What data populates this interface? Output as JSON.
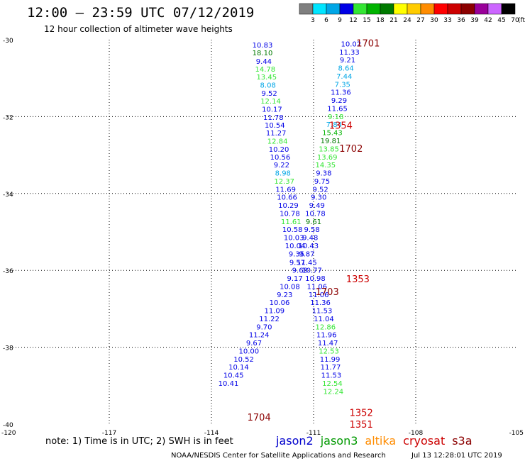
{
  "header": {
    "title": "12:00 – 23:59 UTC 07/12/2019",
    "subtitle": "12 hour collection of altimeter wave heights"
  },
  "legend": {
    "unit": "(ft)",
    "bins": [
      {
        "label": "3",
        "color": "#7f7f7f"
      },
      {
        "label": "6",
        "color": "#00e5ff"
      },
      {
        "label": "9",
        "color": "#00a6e6"
      },
      {
        "label": "12",
        "color": "#0000e6"
      },
      {
        "label": "15",
        "color": "#33e633"
      },
      {
        "label": "18",
        "color": "#00b300"
      },
      {
        "label": "21",
        "color": "#007a00"
      },
      {
        "label": "24",
        "color": "#ffff00"
      },
      {
        "label": "27",
        "color": "#ffcc00"
      },
      {
        "label": "30",
        "color": "#ff8c00"
      },
      {
        "label": "33",
        "color": "#ff0000"
      },
      {
        "label": "36",
        "color": "#cc0000"
      },
      {
        "label": "39",
        "color": "#8b0000"
      },
      {
        "label": "42",
        "color": "#990099"
      },
      {
        "label": "45",
        "color": "#cc66ff"
      },
      {
        "label": "70",
        "color": "#000000"
      }
    ]
  },
  "footer": {
    "note": "note:  1) Time is in UTC; 2) SWH is in feet",
    "satellites": [
      {
        "name": "jason2",
        "color": "#0000cc"
      },
      {
        "name": "jason3",
        "color": "#009900"
      },
      {
        "name": "altika",
        "color": "#ff8c00"
      },
      {
        "name": "cryosat",
        "color": "#cc0000"
      },
      {
        "name": "s3a",
        "color": "#8b0000"
      }
    ],
    "credit": "NOAA/NESDIS Center for Satellite Applications and Research",
    "timestamp": "Jul 13 12:28:01 UTC 2019"
  },
  "chart_data": {
    "type": "scatter",
    "xlim": [
      -120,
      -105
    ],
    "ylim": [
      -40,
      -30
    ],
    "x_ticks": [
      -120,
      -117,
      -114,
      -111,
      -108,
      -105
    ],
    "y_ticks": [
      -30,
      -32,
      -34,
      -36,
      -38,
      -40
    ],
    "x_tick_labels": [
      "-120",
      "-117",
      "-114",
      "-111",
      "-108",
      "-105"
    ],
    "y_tick_labels": [
      "-30",
      "-32",
      "-34",
      "-36",
      "-38",
      "-40"
    ],
    "grid": true,
    "track_labels": [
      {
        "text": "1701",
        "x": -109.4,
        "y": -30.08,
        "color": "#8b0000"
      },
      {
        "text": "1354",
        "x": -110.2,
        "y": -32.22,
        "color": "#cc0000"
      },
      {
        "text": "1702",
        "x": -109.9,
        "y": -32.82,
        "color": "#8b0000"
      },
      {
        "text": "1353",
        "x": -109.7,
        "y": -36.22,
        "color": "#cc0000"
      },
      {
        "text": "1703",
        "x": -110.6,
        "y": -36.55,
        "color": "#8b0000"
      },
      {
        "text": "1704",
        "x": -112.6,
        "y": -39.82,
        "color": "#8b0000"
      },
      {
        "text": "1352",
        "x": -109.6,
        "y": -39.7,
        "color": "#cc0000"
      },
      {
        "text": "1351",
        "x": -109.6,
        "y": -40.0,
        "color": "#cc0000"
      }
    ],
    "points": [
      {
        "text": "10.83",
        "x": -112.5,
        "y": -30.13,
        "color": "#0000e6"
      },
      {
        "text": "18.10",
        "x": -112.5,
        "y": -30.33,
        "color": "#007a00"
      },
      {
        "text": "9.44",
        "x": -112.46,
        "y": -30.55,
        "color": "#0000e6"
      },
      {
        "text": "14.78",
        "x": -112.42,
        "y": -30.76,
        "color": "#33e633"
      },
      {
        "text": "13.45",
        "x": -112.38,
        "y": -30.96,
        "color": "#33e633"
      },
      {
        "text": "8.08",
        "x": -112.34,
        "y": -31.17,
        "color": "#00a6e6"
      },
      {
        "text": "9.52",
        "x": -112.3,
        "y": -31.38,
        "color": "#0000e6"
      },
      {
        "text": "12.14",
        "x": -112.26,
        "y": -31.59,
        "color": "#33e633"
      },
      {
        "text": "10.17",
        "x": -112.22,
        "y": -31.8,
        "color": "#0000e6"
      },
      {
        "text": "11.78",
        "x": -112.18,
        "y": -32.01,
        "color": "#0000e6"
      },
      {
        "text": "10.54",
        "x": -112.14,
        "y": -32.21,
        "color": "#0000e6"
      },
      {
        "text": "11.27",
        "x": -112.1,
        "y": -32.42,
        "color": "#0000e6"
      },
      {
        "text": "12.84",
        "x": -112.06,
        "y": -32.63,
        "color": "#33e633"
      },
      {
        "text": "10.20",
        "x": -112.02,
        "y": -32.84,
        "color": "#0000e6"
      },
      {
        "text": "10.56",
        "x": -111.98,
        "y": -33.04,
        "color": "#0000e6"
      },
      {
        "text": "9.22",
        "x": -111.94,
        "y": -33.25,
        "color": "#0000e6"
      },
      {
        "text": "8.98",
        "x": -111.9,
        "y": -33.46,
        "color": "#00a6e6"
      },
      {
        "text": "12.37",
        "x": -111.86,
        "y": -33.67,
        "color": "#33e633"
      },
      {
        "text": "11.69",
        "x": -111.82,
        "y": -33.88,
        "color": "#0000e6"
      },
      {
        "text": "10.66",
        "x": -111.78,
        "y": -34.09,
        "color": "#0000e6"
      },
      {
        "text": "10.29",
        "x": -111.74,
        "y": -34.3,
        "color": "#0000e6"
      },
      {
        "text": "10.78",
        "x": -111.7,
        "y": -34.51,
        "color": "#0000e6"
      },
      {
        "text": "11.61",
        "x": -111.66,
        "y": -34.72,
        "color": "#33e633"
      },
      {
        "text": "10.58",
        "x": -111.62,
        "y": -34.93,
        "color": "#0000e6"
      },
      {
        "text": "10.03",
        "x": -111.58,
        "y": -35.14,
        "color": "#0000e6"
      },
      {
        "text": "10.04",
        "x": -111.54,
        "y": -35.35,
        "color": "#0000e6"
      },
      {
        "text": "9.35",
        "x": -111.5,
        "y": -35.56,
        "color": "#0000e6"
      },
      {
        "text": "9.57",
        "x": -111.48,
        "y": -35.78,
        "color": "#0000e6"
      },
      {
        "text": "9.68",
        "x": -111.4,
        "y": -35.99,
        "color": "#0000e6"
      },
      {
        "text": "9.17",
        "x": -111.55,
        "y": -36.2,
        "color": "#0000e6"
      },
      {
        "text": "10.08",
        "x": -111.7,
        "y": -36.41,
        "color": "#0000e6"
      },
      {
        "text": "9.23",
        "x": -111.85,
        "y": -36.62,
        "color": "#0000e6"
      },
      {
        "text": "10.06",
        "x": -112.0,
        "y": -36.83,
        "color": "#0000e6"
      },
      {
        "text": "11.09",
        "x": -112.15,
        "y": -37.04,
        "color": "#0000e6"
      },
      {
        "text": "11.22",
        "x": -112.3,
        "y": -37.25,
        "color": "#0000e6"
      },
      {
        "text": "9.70",
        "x": -112.45,
        "y": -37.46,
        "color": "#0000e6"
      },
      {
        "text": "11.24",
        "x": -112.6,
        "y": -37.67,
        "color": "#0000e6"
      },
      {
        "text": "9.67",
        "x": -112.75,
        "y": -37.88,
        "color": "#0000e6"
      },
      {
        "text": "10.00",
        "x": -112.9,
        "y": -38.09,
        "color": "#0000e6"
      },
      {
        "text": "10.52",
        "x": -113.05,
        "y": -38.3,
        "color": "#0000e6"
      },
      {
        "text": "10.14",
        "x": -113.2,
        "y": -38.51,
        "color": "#0000e6"
      },
      {
        "text": "10.45",
        "x": -113.35,
        "y": -38.72,
        "color": "#0000e6"
      },
      {
        "text": "10.41",
        "x": -113.5,
        "y": -38.93,
        "color": "#0000e6"
      },
      {
        "text": "10.02",
        "x": -109.9,
        "y": -30.1,
        "color": "#0000e6"
      },
      {
        "text": "11.33",
        "x": -109.95,
        "y": -30.31,
        "color": "#0000e6"
      },
      {
        "text": "9.21",
        "x": -110.0,
        "y": -30.52,
        "color": "#0000e6"
      },
      {
        "text": "8.64",
        "x": -110.05,
        "y": -30.73,
        "color": "#00a6e6"
      },
      {
        "text": "7.44",
        "x": -110.1,
        "y": -30.94,
        "color": "#00a6e6"
      },
      {
        "text": "7.35",
        "x": -110.15,
        "y": -31.15,
        "color": "#00a6e6"
      },
      {
        "text": "11.36",
        "x": -110.2,
        "y": -31.36,
        "color": "#0000e6"
      },
      {
        "text": "9.29",
        "x": -110.25,
        "y": -31.57,
        "color": "#0000e6"
      },
      {
        "text": "11.65",
        "x": -110.3,
        "y": -31.78,
        "color": "#0000e6"
      },
      {
        "text": "9.18",
        "x": -110.35,
        "y": -31.99,
        "color": "#33e633"
      },
      {
        "text": "7.84",
        "x": -110.4,
        "y": -32.2,
        "color": "#00a6e6"
      },
      {
        "text": "15.43",
        "x": -110.45,
        "y": -32.41,
        "color": "#00b300"
      },
      {
        "text": "19.81",
        "x": -110.5,
        "y": -32.62,
        "color": "#007a00"
      },
      {
        "text": "13.85",
        "x": -110.55,
        "y": -32.83,
        "color": "#33e633"
      },
      {
        "text": "13.69",
        "x": -110.6,
        "y": -33.04,
        "color": "#33e633"
      },
      {
        "text": "14.35",
        "x": -110.65,
        "y": -33.25,
        "color": "#33e633"
      },
      {
        "text": "9.38",
        "x": -110.7,
        "y": -33.46,
        "color": "#0000e6"
      },
      {
        "text": "9.75",
        "x": -110.75,
        "y": -33.67,
        "color": "#0000e6"
      },
      {
        "text": "9.52",
        "x": -110.8,
        "y": -33.88,
        "color": "#0000e6"
      },
      {
        "text": "9.30",
        "x": -110.85,
        "y": -34.09,
        "color": "#0000e6"
      },
      {
        "text": "9.49",
        "x": -110.9,
        "y": -34.3,
        "color": "#0000e6"
      },
      {
        "text": "10.78",
        "x": -110.95,
        "y": -34.51,
        "color": "#0000e6"
      },
      {
        "text": "9.61",
        "x": -111.0,
        "y": -34.72,
        "color": "#007a00"
      },
      {
        "text": "9.58",
        "x": -111.05,
        "y": -34.93,
        "color": "#0000e6"
      },
      {
        "text": "9.48",
        "x": -111.1,
        "y": -35.14,
        "color": "#0000e6"
      },
      {
        "text": "10.43",
        "x": -111.15,
        "y": -35.35,
        "color": "#0000e6"
      },
      {
        "text": "9.87",
        "x": -111.2,
        "y": -35.56,
        "color": "#0000e6"
      },
      {
        "text": "11.45",
        "x": -111.2,
        "y": -35.78,
        "color": "#0000e6"
      },
      {
        "text": "10.77",
        "x": -111.05,
        "y": -35.99,
        "color": "#0000e6"
      },
      {
        "text": "10.98",
        "x": -110.95,
        "y": -36.2,
        "color": "#0000e6"
      },
      {
        "text": "11.06",
        "x": -110.9,
        "y": -36.41,
        "color": "#0000e6"
      },
      {
        "text": "11.06",
        "x": -110.85,
        "y": -36.62,
        "color": "#0000e6"
      },
      {
        "text": "11.36",
        "x": -110.8,
        "y": -36.83,
        "color": "#0000e6"
      },
      {
        "text": "11.53",
        "x": -110.75,
        "y": -37.04,
        "color": "#0000e6"
      },
      {
        "text": "11.04",
        "x": -110.7,
        "y": -37.25,
        "color": "#0000e6"
      },
      {
        "text": "12.86",
        "x": -110.65,
        "y": -37.46,
        "color": "#33e633"
      },
      {
        "text": "11.96",
        "x": -110.62,
        "y": -37.67,
        "color": "#0000e6"
      },
      {
        "text": "11.47",
        "x": -110.58,
        "y": -37.88,
        "color": "#0000e6"
      },
      {
        "text": "12.53",
        "x": -110.55,
        "y": -38.09,
        "color": "#33e633"
      },
      {
        "text": "11.99",
        "x": -110.52,
        "y": -38.3,
        "color": "#0000e6"
      },
      {
        "text": "11.77",
        "x": -110.5,
        "y": -38.51,
        "color": "#0000e6"
      },
      {
        "text": "11.53",
        "x": -110.48,
        "y": -38.72,
        "color": "#0000e6"
      },
      {
        "text": "12.54",
        "x": -110.45,
        "y": -38.93,
        "color": "#33e633"
      },
      {
        "text": "12.24",
        "x": -110.42,
        "y": -39.14,
        "color": "#33e633"
      }
    ]
  }
}
